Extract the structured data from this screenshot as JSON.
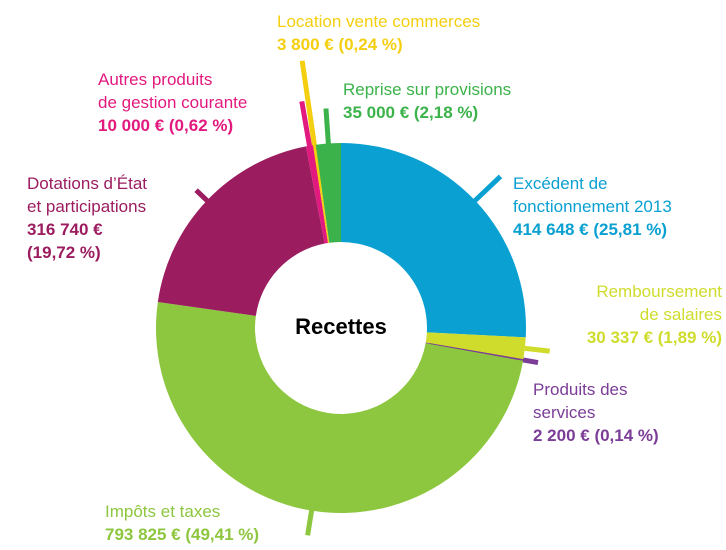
{
  "chart_data": {
    "type": "donut",
    "title": "Recettes",
    "categories": [
      "Excédent de\nfonctionnement 2013",
      "Remboursement\nde salaires",
      "Produits des\nservices",
      "Impôts et taxes",
      "Dotations d’État\net participations",
      "Autres produits\nde gestion courante",
      "Location vente commerces",
      "Reprise sur provisions"
    ],
    "values": [
      414648,
      30337,
      2200,
      793825,
      316740,
      10000,
      3800,
      35000
    ],
    "value_labels": [
      "414 648 € (25,81 %)",
      "30 337 € (1,89 %)",
      "2 200 € (0,14 %)",
      "793 825 € (49,41 %)",
      "316 740 €\n(19,72 %)",
      "10 000 € (0,62 %)",
      "3 800 € (0,24 %)",
      "35 000 € (2,18 %)"
    ],
    "colors": [
      "#0aa0d2",
      "#cfdc2c",
      "#7b3d96",
      "#8dc63f",
      "#9b1c5f",
      "#e2197e",
      "#f3cf10",
      "#3bb34a"
    ]
  }
}
